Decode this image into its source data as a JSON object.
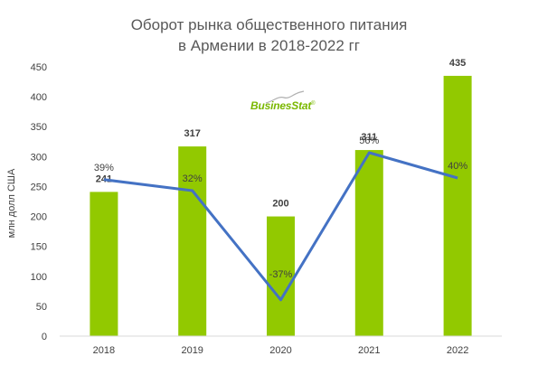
{
  "chart_data": {
    "type": "bar",
    "title_line1": "Оборот рынка общественного питания",
    "title_line2": "в Армении в 2018-2022 гг",
    "ylabel": "млн долл США",
    "categories": [
      "2018",
      "2019",
      "2020",
      "2021",
      "2022"
    ],
    "values": [
      241,
      317,
      200,
      311,
      435
    ],
    "value_labels": [
      "241",
      "317",
      "200",
      "311",
      "435"
    ],
    "y_ticks": [
      "0",
      "50",
      "100",
      "150",
      "200",
      "250",
      "300",
      "350",
      "400",
      "450"
    ],
    "ylim": [
      0,
      450
    ],
    "growth_series": {
      "values": [
        39,
        32,
        -37,
        56,
        40
      ],
      "labels": [
        "39%",
        "32%",
        "-37%",
        "56%",
        "40%"
      ]
    },
    "colors": {
      "bar": "#92c900",
      "line": "#4472c4",
      "axis": "#d9d9d9",
      "text": "#404040"
    },
    "grid": false
  },
  "logo": {
    "text_a": "Busines",
    "text_b": "Stat",
    "mark": "®"
  }
}
